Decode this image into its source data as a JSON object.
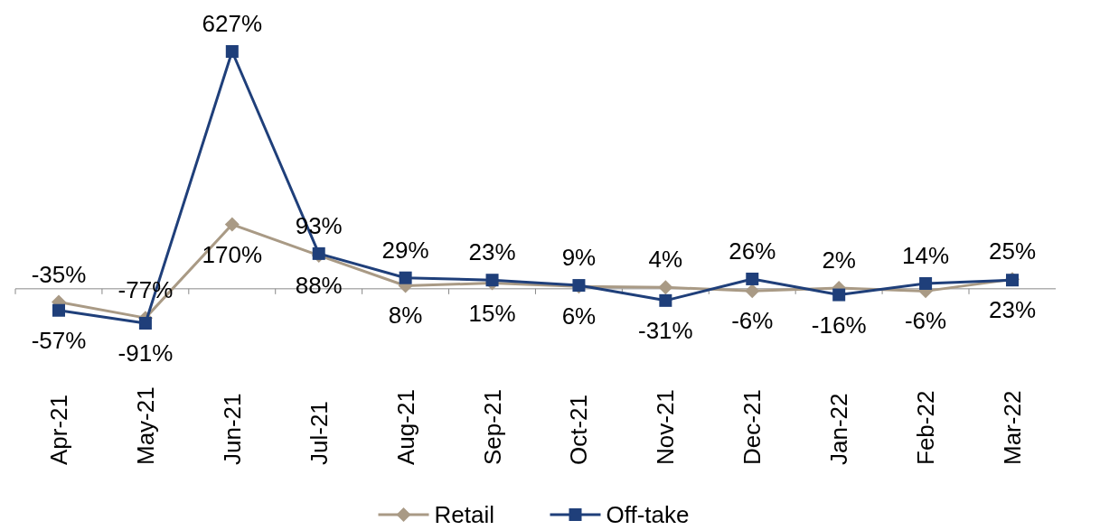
{
  "chart_data": {
    "type": "line",
    "categories": [
      "Apr-21",
      "May-21",
      "Jun-21",
      "Jul-21",
      "Aug-21",
      "Sep-21",
      "Oct-21",
      "Nov-21",
      "Dec-21",
      "Jan-22",
      "Feb-22",
      "Mar-22"
    ],
    "series": [
      {
        "name": "Retail",
        "color": "#a99a85",
        "marker": "diamond",
        "values": [
          -35,
          -77,
          170,
          88,
          8,
          15,
          6,
          4,
          -6,
          2,
          -6,
          25
        ],
        "value_labels": [
          "-35%",
          "-77%",
          "170%",
          "88%",
          "8%",
          "15%",
          "6%",
          "4%",
          "-6%",
          "2%",
          "-6%",
          "25%"
        ]
      },
      {
        "name": "Off-take",
        "color": "#1f3f7a",
        "marker": "square",
        "values": [
          -57,
          -91,
          627,
          93,
          29,
          23,
          9,
          -31,
          26,
          -16,
          14,
          23
        ],
        "value_labels": [
          "-57%",
          "-91%",
          "627%",
          "93%",
          "29%",
          "23%",
          "9%",
          "-31%",
          "26%",
          "-16%",
          "14%",
          "23%"
        ]
      }
    ],
    "legend": "bottom"
  }
}
